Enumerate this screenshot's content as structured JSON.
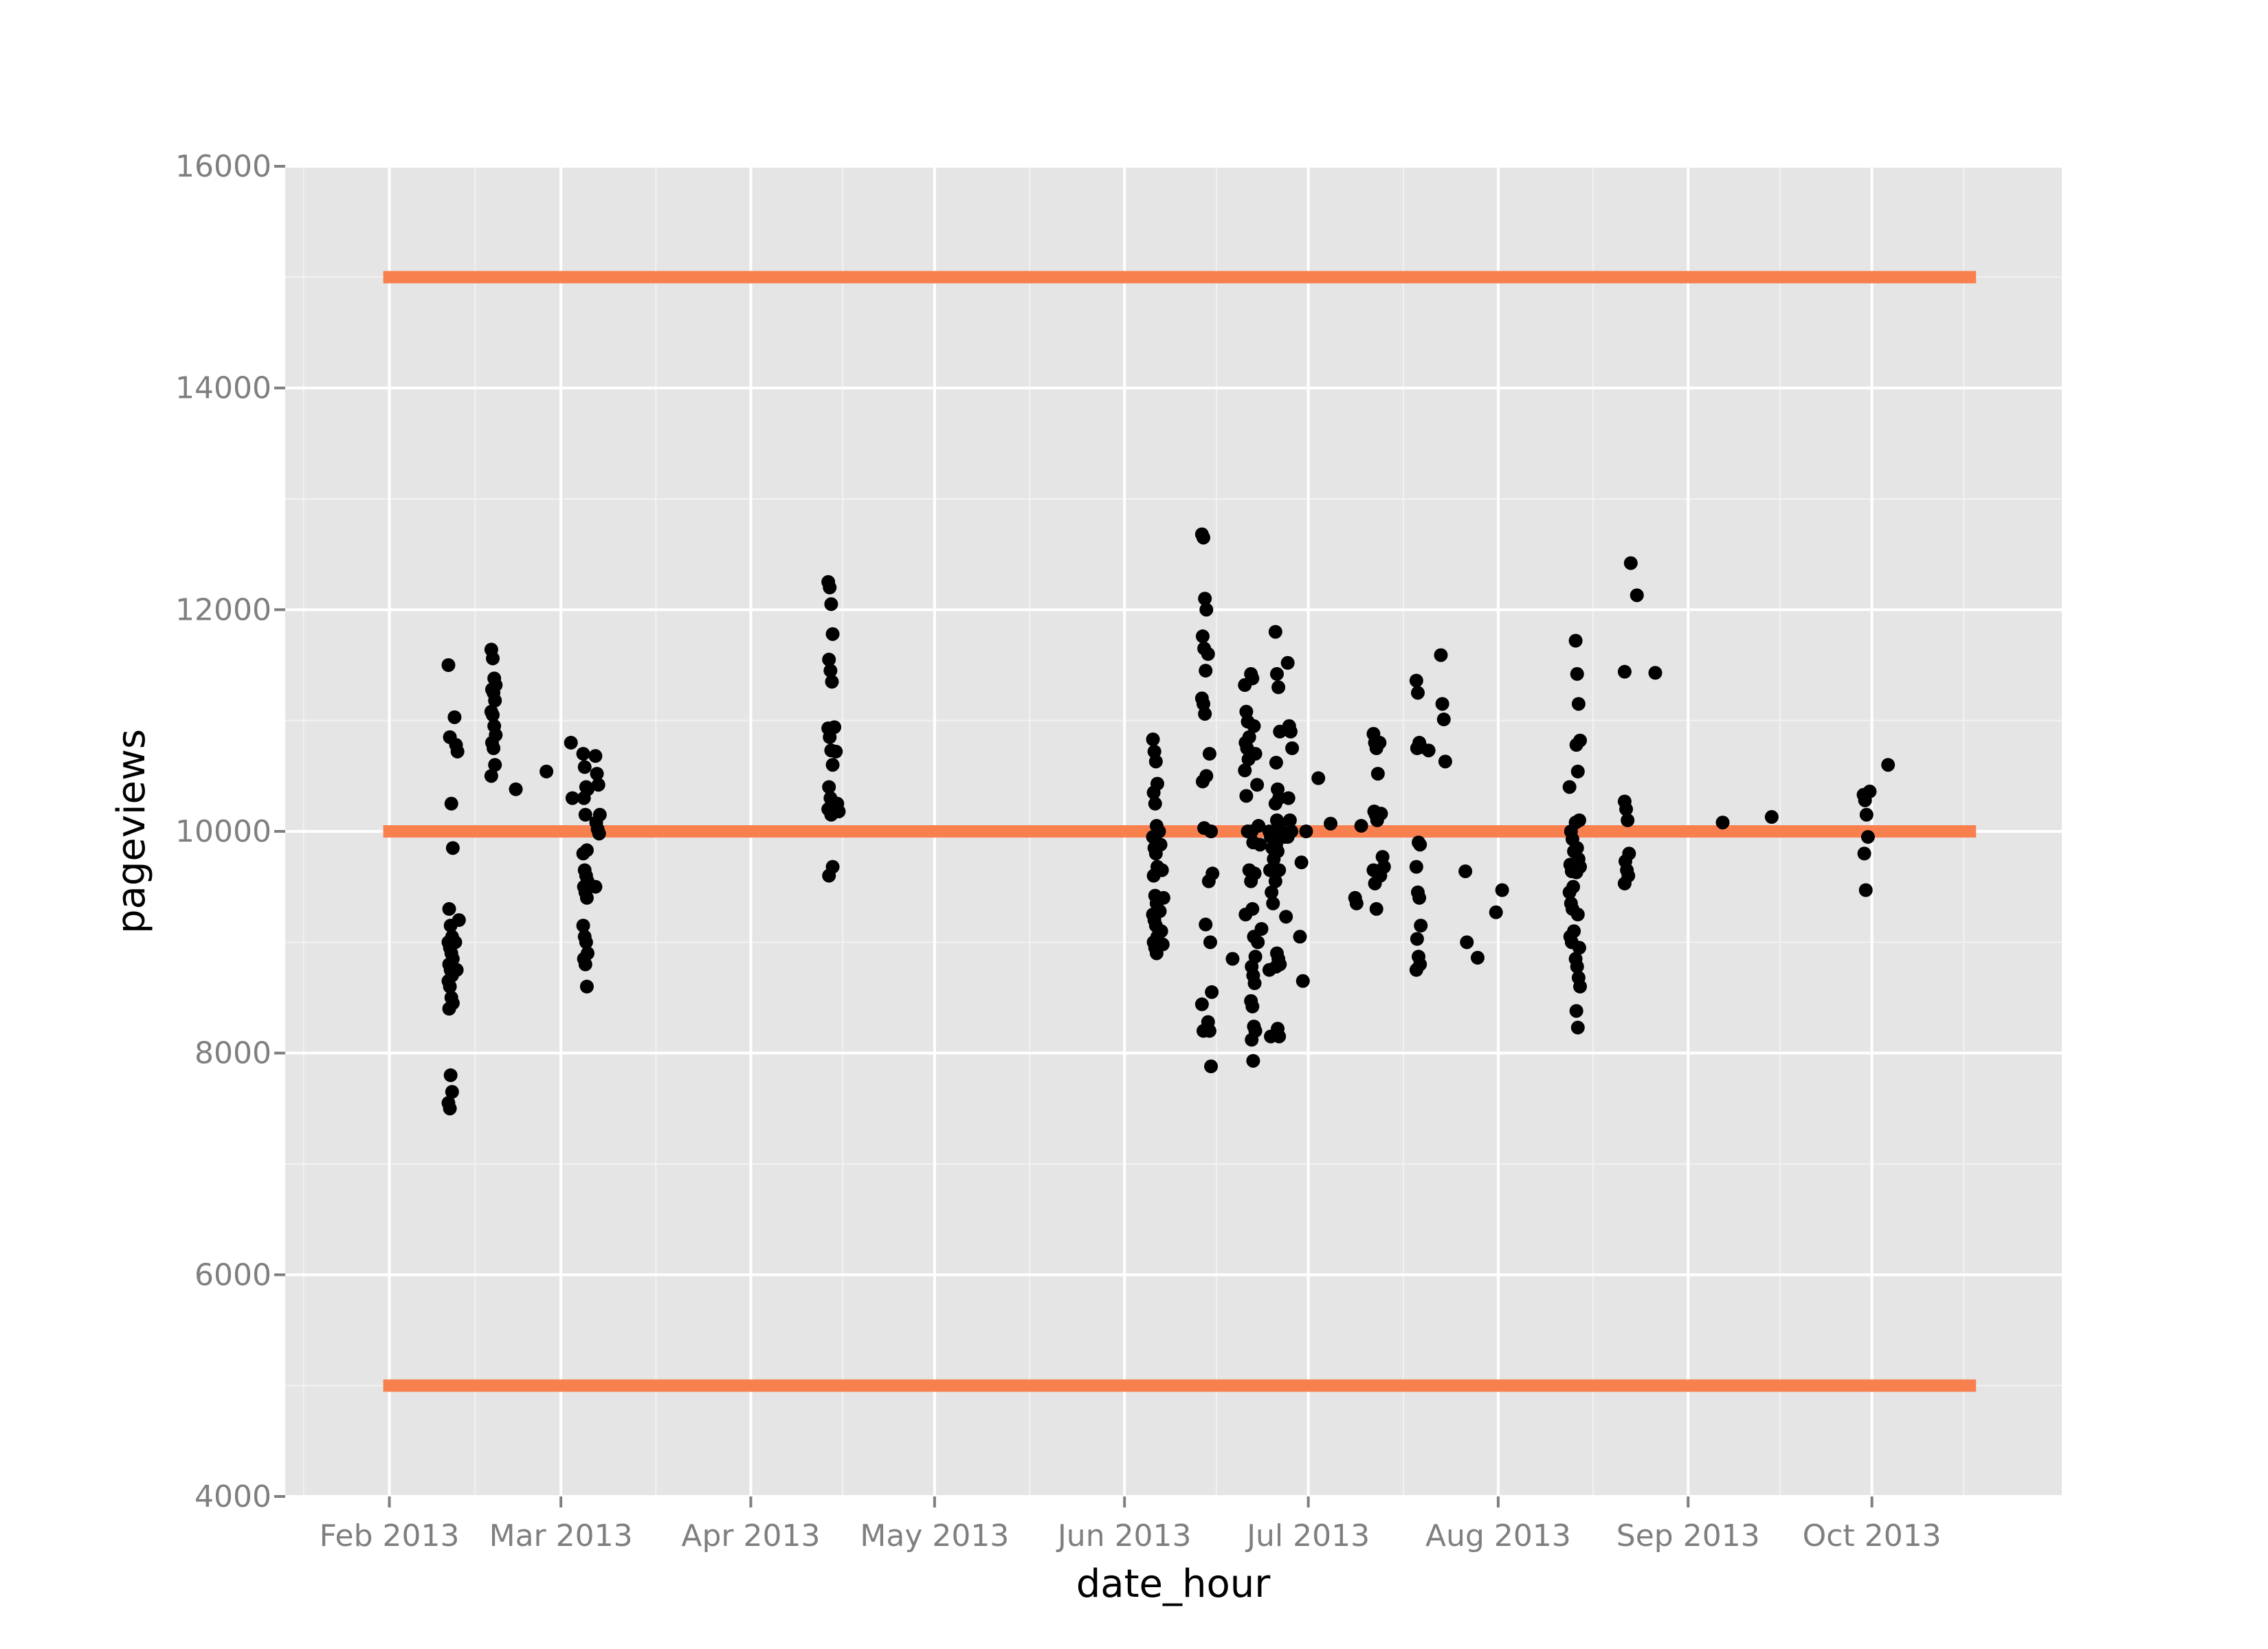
{
  "chart_data": {
    "type": "scatter",
    "xlabel": "date_hour",
    "ylabel": "pageviews",
    "x_ticks": [
      "Feb 2013",
      "Mar 2013",
      "Apr 2013",
      "May 2013",
      "Jun 2013",
      "Jul 2013",
      "Aug 2013",
      "Sep 2013",
      "Oct 2013"
    ],
    "x_tick_dates": [
      "2013-02-01",
      "2013-03-01",
      "2013-04-01",
      "2013-05-01",
      "2013-06-01",
      "2013-07-01",
      "2013-08-01",
      "2013-09-01",
      "2013-10-01"
    ],
    "xlim": [
      "2013-01-15",
      "2013-11-01"
    ],
    "y_ticks": [
      4000,
      6000,
      8000,
      10000,
      12000,
      14000,
      16000
    ],
    "ylim": [
      4000,
      16000
    ],
    "grid": true,
    "reference_lines": [
      {
        "y": 15000,
        "x_start": "2013-01-31",
        "x_end": "2013-10-18",
        "color": "#f8804f"
      },
      {
        "y": 10000,
        "x_start": "2013-01-31",
        "x_end": "2013-10-18",
        "color": "#f8804f"
      },
      {
        "y": 5000,
        "x_start": "2013-01-31",
        "x_end": "2013-10-18",
        "color": "#f8804f"
      }
    ],
    "point_color": "#000000",
    "background_color": "#e5e5e5",
    "groups": [
      {
        "date": "2013-02-11",
        "values": [
          11500,
          10850,
          10250,
          9850,
          9300,
          9150,
          9050,
          9000,
          8950,
          8900,
          8850,
          8800,
          8750,
          8700,
          8650,
          8600,
          8500,
          8450,
          8400,
          7800,
          7650,
          7550,
          7500
        ]
      },
      {
        "date": "2013-02-12",
        "values": [
          11030,
          10780,
          10720,
          9200,
          9000,
          8750
        ]
      },
      {
        "date": "2013-02-18",
        "values": [
          11640,
          11560,
          11380,
          11320,
          11280,
          11250,
          11180,
          11080,
          11050,
          10950,
          10870,
          10800,
          10750,
          10600,
          10500
        ]
      },
      {
        "date": "2013-02-22",
        "values": [
          10380
        ]
      },
      {
        "date": "2013-02-27",
        "values": [
          10540
        ]
      },
      {
        "date": "2013-03-03",
        "values": [
          10800,
          10300
        ]
      },
      {
        "date": "2013-03-05",
        "values": [
          10700,
          10580,
          10400,
          10380,
          10300,
          10150,
          9830,
          9800,
          9650,
          9600,
          9550,
          9500,
          9450,
          9400,
          9150,
          9050,
          9000,
          8900,
          8850,
          8800,
          8600
        ]
      },
      {
        "date": "2013-03-07",
        "values": [
          10680,
          10520,
          10420,
          10150,
          10080,
          10020,
          9980,
          9500
        ]
      },
      {
        "date": "2013-04-14",
        "values": [
          12250,
          12200,
          12050,
          11780,
          11550,
          11450,
          11350,
          10930,
          10850,
          10730,
          10600,
          10400,
          10300,
          10250,
          10200,
          10200,
          10150,
          9680,
          9600
        ]
      },
      {
        "date": "2013-04-15",
        "values": [
          10940,
          10720,
          10250,
          10180
        ]
      },
      {
        "date": "2013-06-06",
        "values": [
          10830,
          10720,
          10630,
          10430,
          10350,
          10250,
          10050,
          9950,
          9850,
          9800,
          9680,
          9600,
          9420,
          9350,
          9250,
          9200,
          9150,
          9050,
          9000,
          8950,
          8900
        ]
      },
      {
        "date": "2013-06-07",
        "values": [
          10000,
          9880,
          9650,
          9400,
          9280,
          9100,
          8980
        ]
      },
      {
        "date": "2013-06-14",
        "values": [
          12680,
          12650,
          12100,
          12000,
          11760,
          11650,
          11450,
          11200,
          11150,
          11060,
          10500,
          10450,
          10030,
          9160,
          8440,
          8200
        ]
      },
      {
        "date": "2013-06-15",
        "values": [
          11600,
          10700,
          10000,
          9620,
          9550,
          9000,
          8550,
          8280,
          8200,
          7880
        ]
      },
      {
        "date": "2013-06-19",
        "values": [
          8850
        ]
      },
      {
        "date": "2013-06-21",
        "values": [
          11320,
          11080,
          10990,
          10850,
          10800,
          10750,
          10650,
          10550,
          10320,
          10000,
          9650,
          9250
        ]
      },
      {
        "date": "2013-06-22",
        "values": [
          11420,
          11380,
          10950,
          10700,
          10000,
          9900,
          9620,
          9550,
          9300,
          9050,
          8870,
          8780,
          8700,
          8630,
          8470,
          8420,
          8240,
          8200,
          8120,
          7930
        ]
      },
      {
        "date": "2013-06-23",
        "values": [
          10420,
          10050,
          9880,
          9120,
          9000
        ]
      },
      {
        "date": "2013-06-25",
        "values": [
          10000,
          9950,
          9850,
          9750,
          9650,
          9450,
          9350,
          8750,
          8150
        ]
      },
      {
        "date": "2013-06-26",
        "values": [
          11800,
          11420,
          11300,
          10900,
          10620,
          10380,
          10300,
          10250,
          10100,
          10050,
          9950,
          9880,
          9820,
          9650,
          9550,
          8900,
          8850,
          8800,
          8780,
          8220,
          8150
        ]
      },
      {
        "date": "2013-06-27",
        "values": [
          10000,
          9980,
          9950,
          9230
        ]
      },
      {
        "date": "2013-06-28",
        "values": [
          11520,
          10950,
          10900,
          10750,
          10300,
          10100,
          10000,
          9950
        ]
      },
      {
        "date": "2013-06-30",
        "values": [
          9050,
          9720,
          8650
        ]
      },
      {
        "date": "2013-07-01",
        "values": [
          10000
        ]
      },
      {
        "date": "2013-07-03",
        "values": [
          10480
        ]
      },
      {
        "date": "2013-07-05",
        "values": [
          10070
        ]
      },
      {
        "date": "2013-07-09",
        "values": [
          9400,
          9350
        ]
      },
      {
        "date": "2013-07-10",
        "values": [
          10050
        ]
      },
      {
        "date": "2013-07-12",
        "values": [
          10880,
          10800,
          10750,
          10520,
          10180,
          10150,
          10100,
          9650,
          9530,
          9300
        ]
      },
      {
        "date": "2013-07-13",
        "values": [
          10800,
          10160,
          9770,
          9680,
          9600
        ]
      },
      {
        "date": "2013-07-19",
        "values": [
          11360,
          11250,
          10800,
          10760,
          10750,
          9900,
          9880,
          9680,
          9450,
          9400,
          9150,
          9030,
          8870,
          8800,
          8750
        ]
      },
      {
        "date": "2013-07-21",
        "values": [
          10730
        ]
      },
      {
        "date": "2013-07-23",
        "values": [
          11590,
          11150,
          11010,
          10630
        ]
      },
      {
        "date": "2013-07-27",
        "values": [
          9640,
          9000
        ]
      },
      {
        "date": "2013-07-29",
        "values": [
          8860
        ]
      },
      {
        "date": "2013-08-01",
        "values": [
          9270
        ]
      },
      {
        "date": "2013-08-02",
        "values": [
          9470
        ]
      },
      {
        "date": "2013-08-13",
        "values": [
          10400,
          10000,
          9930,
          9820,
          9700,
          9640,
          9500,
          9450,
          9350,
          9300,
          9100,
          9050,
          9000
        ]
      },
      {
        "date": "2013-08-14",
        "values": [
          11720,
          11420,
          11150,
          10820,
          10780,
          10540,
          10100,
          10080,
          9850,
          9750,
          9680,
          9630,
          9250,
          8950,
          8850,
          8780,
          8680,
          8600,
          8380,
          8230
        ]
      },
      {
        "date": "2013-08-22",
        "values": [
          10270,
          10200,
          10100,
          9800,
          9730,
          9650,
          9600,
          9530
        ]
      },
      {
        "date": "2013-08-23",
        "values": [
          12420
        ]
      },
      {
        "date": "2013-08-24",
        "values": [
          12130
        ]
      },
      {
        "date": "2013-08-22",
        "values": [
          11440
        ]
      },
      {
        "date": "2013-08-27",
        "values": [
          11430
        ]
      },
      {
        "date": "2013-09-07",
        "values": [
          10080
        ]
      },
      {
        "date": "2013-09-15",
        "values": [
          10130
        ]
      },
      {
        "date": "2013-09-30",
        "values": [
          10330,
          10280,
          10150,
          9950,
          9800,
          9470
        ]
      },
      {
        "date": "2013-10-01",
        "values": [
          10360
        ]
      },
      {
        "date": "2013-10-04",
        "values": [
          10600
        ]
      }
    ]
  }
}
